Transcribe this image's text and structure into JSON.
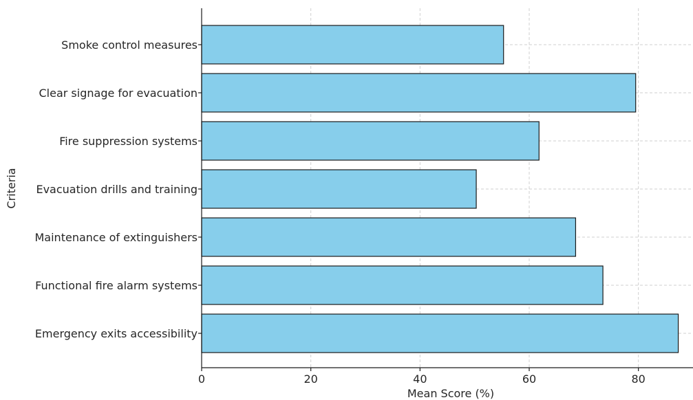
{
  "chart_data": {
    "type": "bar",
    "orientation": "horizontal",
    "categories": [
      "Smoke control measures",
      "Clear signage for evacuation",
      "Fire suppression systems",
      "Evacuation drills and training",
      "Maintenance of extinguishers",
      "Functional fire alarm systems",
      "Emergency exits accessibility"
    ],
    "values": [
      55.3,
      79.5,
      61.8,
      50.3,
      68.5,
      73.5,
      87.3
    ],
    "xlabel": "Mean Score (%)",
    "ylabel": "Criteria",
    "xlim": [
      0,
      90
    ],
    "xticks": [
      0,
      20,
      40,
      60,
      80
    ],
    "grid": true,
    "bar_color": "#87ceeb",
    "edge_color": "#1a1a1a"
  }
}
